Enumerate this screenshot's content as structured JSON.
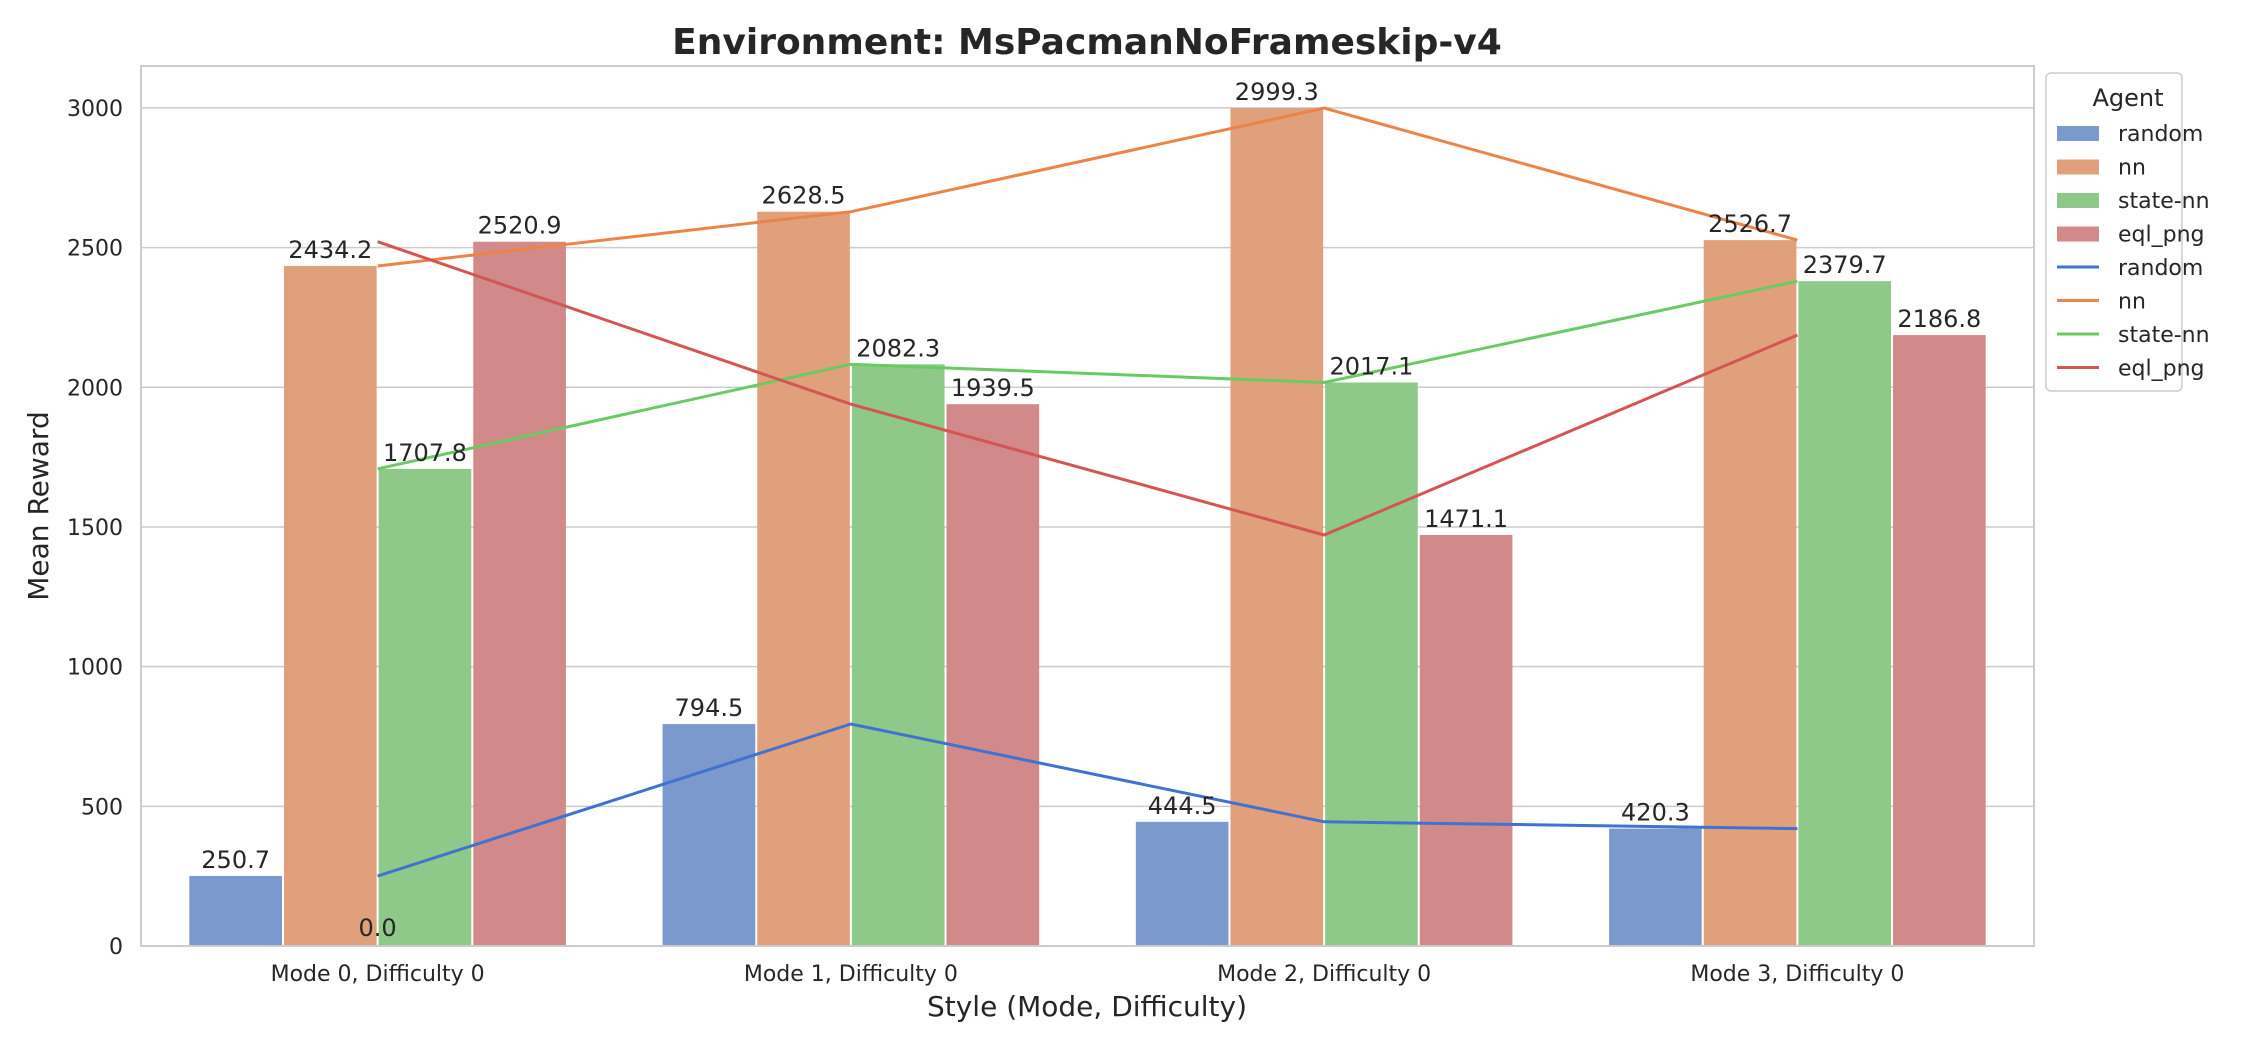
{
  "chart_data": {
    "type": "bar",
    "title": "Environment: MsPacmanNoFrameskip-v4",
    "xlabel": "Style (Mode, Difficulty)",
    "ylabel": "Mean Reward",
    "categories": [
      "Mode 0, Difficulty 0",
      "Mode 1, Difficulty 0",
      "Mode 2, Difficulty 0",
      "Mode 3, Difficulty 0"
    ],
    "ylim": [
      0,
      3150
    ],
    "yticks": [
      0,
      500,
      1000,
      1500,
      2000,
      2500,
      3000
    ],
    "grid": true,
    "legend_title": "Agent",
    "legend_position": "outside-top-right",
    "series": [
      {
        "name": "random",
        "values": [
          250.7,
          794.5,
          444.5,
          420.3
        ],
        "labels": [
          "250.7",
          "794.5",
          "444.5",
          "420.3"
        ],
        "bar_color": "#7b99cc",
        "line_color": "#4272cf"
      },
      {
        "name": "nn",
        "values": [
          2434.2,
          2628.5,
          2999.3,
          2526.7
        ],
        "labels": [
          "2434.2",
          "2628.5",
          "2999.3",
          "2526.7"
        ],
        "bar_color": "#e0a07c",
        "line_color": "#ec8448"
      },
      {
        "name": "state-nn",
        "values": [
          1707.8,
          2082.3,
          2017.1,
          2379.7
        ],
        "labels": [
          "1707.8",
          "2082.3",
          "2017.1",
          "2379.7"
        ],
        "bar_color": "#8fc98a",
        "line_color": "#6bca63"
      },
      {
        "name": "eql_png",
        "values": [
          2520.9,
          1939.5,
          1471.1,
          2186.8
        ],
        "labels": [
          "2520.9",
          "1939.5",
          "1471.1",
          "2186.8"
        ],
        "bar_color": "#d2898a",
        "line_color": "#d45654"
      }
    ],
    "lines": [
      {
        "name": "random",
        "values": [
          250.7,
          794.5,
          444.5,
          420.3
        ]
      },
      {
        "name": "nn",
        "values": [
          2434.2,
          2628.5,
          2999.3,
          2526.7
        ]
      },
      {
        "name": "state-nn",
        "values": [
          1707.8,
          2082.3,
          2017.1,
          2379.7
        ]
      },
      {
        "name": "eql_png",
        "values": [
          2520.9,
          1939.5,
          1471.1,
          2186.8
        ]
      }
    ],
    "extra_annotation": "0.0"
  }
}
